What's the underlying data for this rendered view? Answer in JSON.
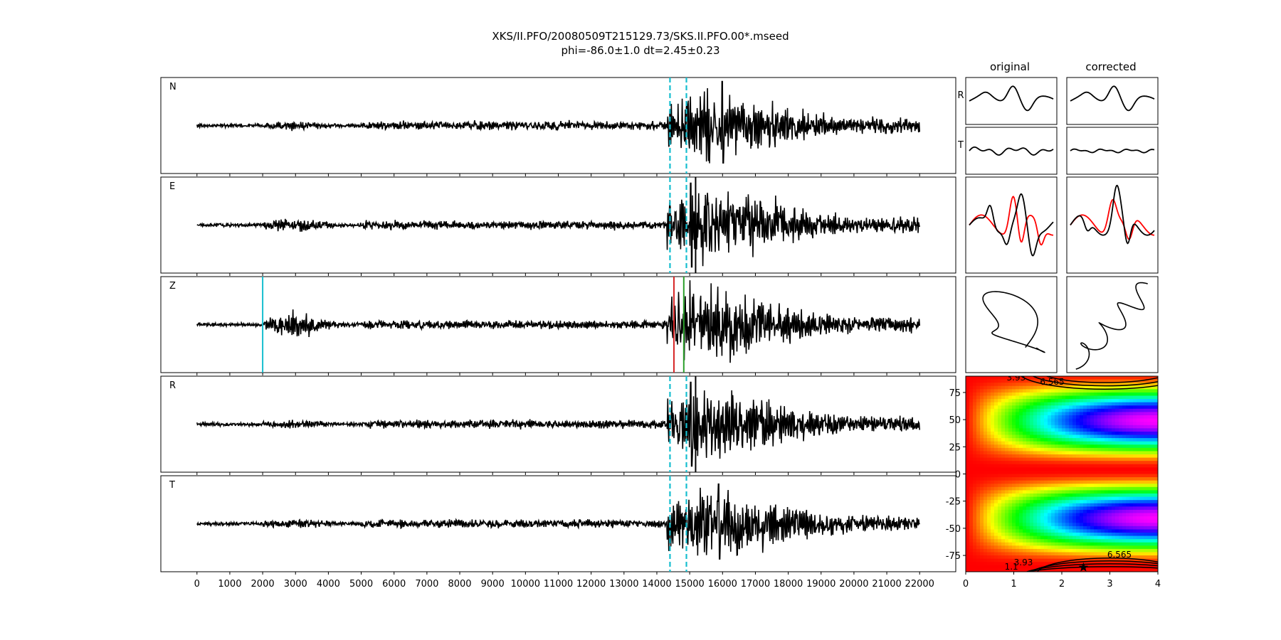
{
  "figure": {
    "title_line1": "XKS/II.PFO/20080509T215129.73/SKS.II.PFO.00*.mseed",
    "title_line2": "phi=-86.0±1.0 dt=2.45±0.23",
    "col_original": "original",
    "col_corrected": "corrected"
  },
  "chart_data": [
    {
      "type": "line",
      "name": "waveforms",
      "panels": [
        {
          "label": "N",
          "markers": [
            {
              "x": 14400,
              "color": "#17becf",
              "style": "dashed"
            },
            {
              "x": 14900,
              "color": "#17becf",
              "style": "dashed"
            }
          ]
        },
        {
          "label": "E",
          "markers": [
            {
              "x": 14400,
              "color": "#17becf",
              "style": "dashed"
            },
            {
              "x": 14900,
              "color": "#17becf",
              "style": "dashed"
            },
            {
              "x": 15180,
              "color": "#000000",
              "style": "solid"
            }
          ]
        },
        {
          "label": "Z",
          "markers": [
            {
              "x": 2000,
              "color": "#17becf",
              "style": "solid"
            },
            {
              "x": 14520,
              "color": "#d62728",
              "style": "solid"
            },
            {
              "x": 14820,
              "color": "#2ca02c",
              "style": "solid"
            }
          ]
        },
        {
          "label": "R",
          "markers": [
            {
              "x": 14400,
              "color": "#17becf",
              "style": "dashed"
            },
            {
              "x": 14900,
              "color": "#17becf",
              "style": "dashed"
            },
            {
              "x": 15180,
              "color": "#000000",
              "style": "solid"
            }
          ]
        },
        {
          "label": "T",
          "markers": [
            {
              "x": 14400,
              "color": "#17becf",
              "style": "dashed"
            },
            {
              "x": 14900,
              "color": "#17becf",
              "style": "dashed"
            }
          ]
        }
      ],
      "x_ticks": [
        0,
        1000,
        2000,
        3000,
        4000,
        5000,
        6000,
        7000,
        8000,
        9000,
        10000,
        11000,
        12000,
        13000,
        14000,
        15000,
        16000,
        17000,
        18000,
        19000,
        20000,
        21000,
        22000
      ],
      "xlim": [
        -1100,
        23100
      ],
      "data_range": [
        0,
        22000
      ],
      "trace_color": "#000000"
    },
    {
      "type": "line",
      "name": "particle-window-panels",
      "labels": {
        "row1": "R",
        "row2": "T"
      },
      "second_trace_color": "#ff0000"
    },
    {
      "type": "heatmap",
      "name": "phi-dt-grid",
      "xlim": [
        0,
        4
      ],
      "ylim": [
        -90,
        90
      ],
      "x_ticks": [
        0,
        1,
        2,
        3,
        4
      ],
      "y_ticks": [
        75,
        50,
        25,
        0,
        -25,
        -50,
        -75
      ],
      "colormap": "gist_rainbow",
      "contour_labels": [
        "3.93",
        "6.565",
        "3.93",
        "6.565",
        "1.1"
      ],
      "best_phi": -86.0,
      "best_dt": 2.45
    }
  ]
}
